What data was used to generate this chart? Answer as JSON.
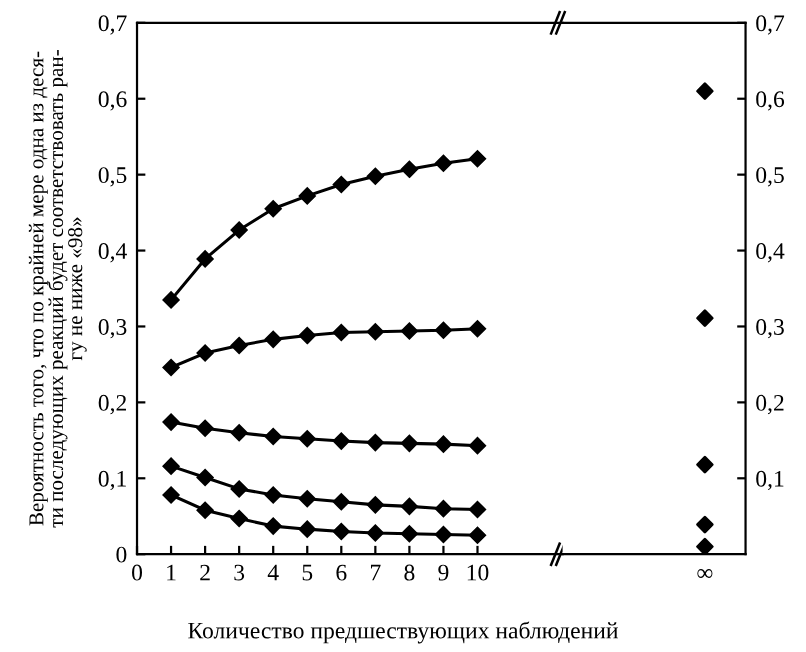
{
  "chart_data": [
    {
      "type": "line",
      "xlabel": "Количество предшествующих наблюдений",
      "ylabel": "Вероятность того, что по крайней мере одна из деся-\nти последующих реакций будет соответствовать ран-\nгу не ниже «98»",
      "marker": "diamond",
      "x": [
        1,
        2,
        3,
        4,
        5,
        6,
        7,
        8,
        9,
        10
      ],
      "xlim": [
        0,
        12.5
      ],
      "xticks": [
        0,
        1,
        2,
        3,
        4,
        5,
        6,
        7,
        8,
        9,
        10
      ],
      "ylim": [
        0,
        0.7
      ],
      "yticks": [
        0,
        {
          "value": 0.1,
          "label": "0,1"
        },
        {
          "value": 0.2,
          "label": "0,2"
        },
        {
          "value": 0.3,
          "label": "0,3"
        },
        {
          "value": 0.4,
          "label": "0,4"
        },
        {
          "value": 0.5,
          "label": "0,5"
        },
        {
          "value": 0.6,
          "label": "0,6"
        },
        {
          "value": 0.7,
          "label": "0,7"
        }
      ],
      "series": [
        {
          "color": "#000000",
          "values": [
            0.335,
            0.389,
            0.427,
            0.455,
            0.472,
            0.487,
            0.498,
            0.507,
            0.515,
            0.521
          ]
        },
        {
          "color": "#000000",
          "values": [
            0.246,
            0.265,
            0.275,
            0.283,
            0.288,
            0.292,
            0.293,
            0.294,
            0.295,
            0.297
          ]
        },
        {
          "color": "#000000",
          "values": [
            0.174,
            0.166,
            0.16,
            0.155,
            0.152,
            0.149,
            0.147,
            0.146,
            0.145,
            0.143
          ]
        },
        {
          "color": "#000000",
          "values": [
            0.116,
            0.101,
            0.086,
            0.078,
            0.073,
            0.069,
            0.065,
            0.063,
            0.06,
            0.059
          ]
        },
        {
          "color": "#000000",
          "values": [
            0.078,
            0.058,
            0.047,
            0.037,
            0.033,
            0.03,
            0.028,
            0.027,
            0.026,
            0.025
          ]
        }
      ]
    },
    {
      "type": "scatter",
      "marker": "diamond",
      "categories": [
        "∞"
      ],
      "ylim": [
        0,
        0.7
      ],
      "yticks": [
        {
          "value": 0.1,
          "label": "0,1"
        },
        {
          "value": 0.2,
          "label": "0,2"
        },
        {
          "value": 0.3,
          "label": "0,3"
        },
        {
          "value": 0.4,
          "label": "0,4"
        },
        {
          "value": 0.5,
          "label": "0,5"
        },
        {
          "value": 0.6,
          "label": "0,6"
        },
        {
          "value": 0.7,
          "label": "0,7"
        }
      ],
      "series": [
        {
          "color": "#000000",
          "values": [
            0.61
          ]
        },
        {
          "color": "#000000",
          "values": [
            0.311
          ]
        },
        {
          "color": "#000000",
          "values": [
            0.118
          ]
        },
        {
          "color": "#000000",
          "values": [
            0.039
          ]
        },
        {
          "color": "#000000",
          "values": [
            0.01
          ]
        }
      ]
    }
  ]
}
